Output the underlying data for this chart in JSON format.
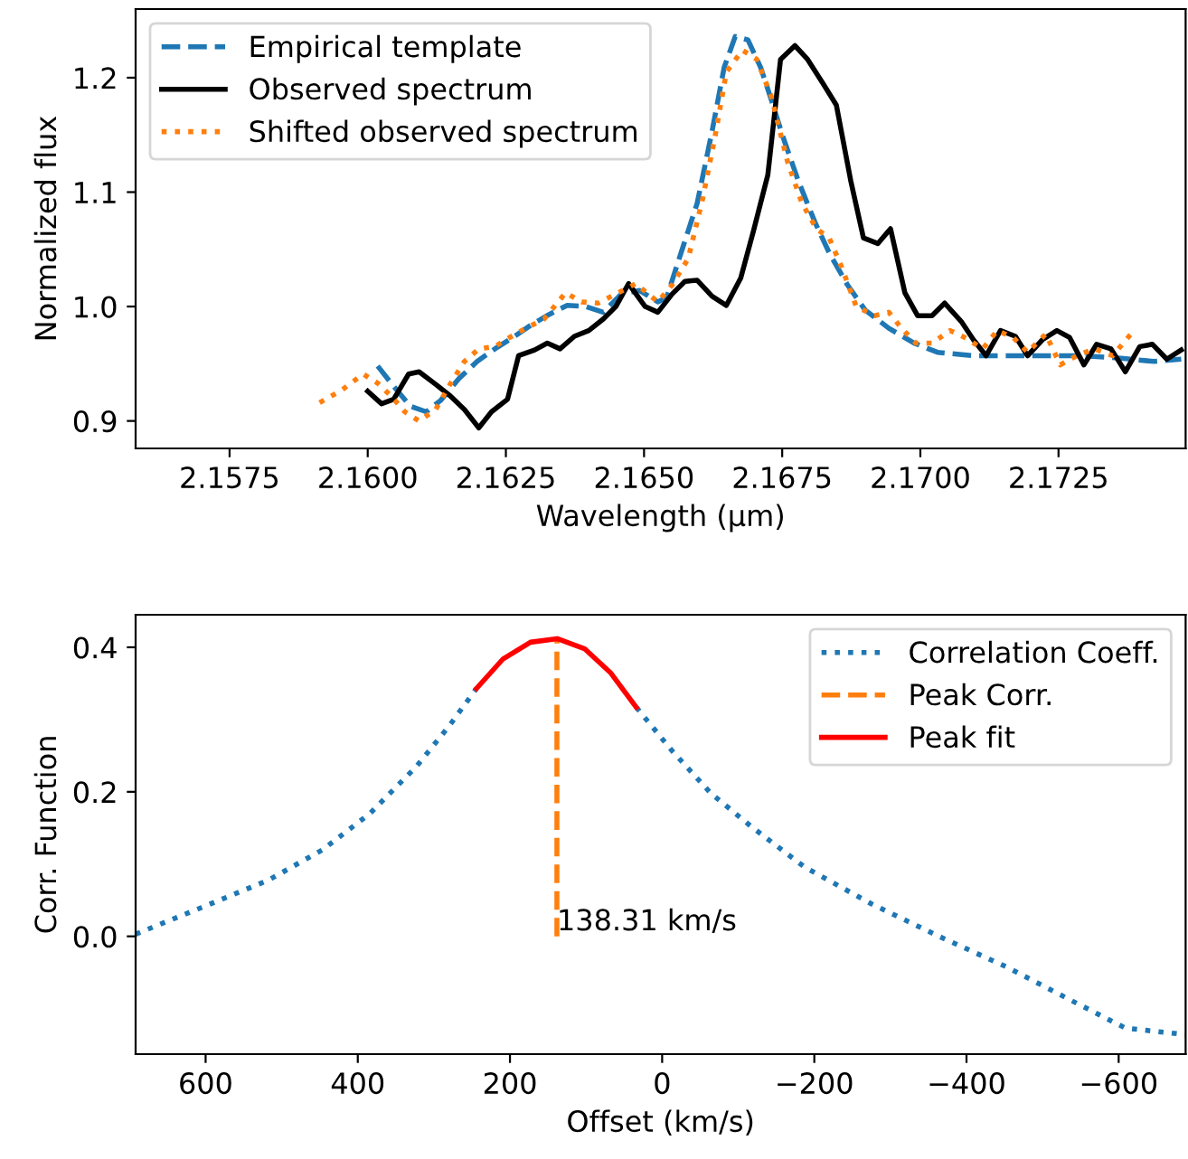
{
  "chart_data": [
    {
      "type": "line",
      "xlabel": "Wavelength (μm)",
      "ylabel": "Normalized flux",
      "xlim": [
        2.1558,
        2.1748
      ],
      "ylim": [
        0.876,
        1.26
      ],
      "xticks": [
        2.1575,
        {
          "value": 2.16,
          "label": "2.1600"
        },
        2.1625,
        {
          "value": 2.165,
          "label": "2.1650"
        },
        2.1675,
        {
          "value": 2.17,
          "label": "2.1700"
        },
        2.1725
      ],
      "yticks": [
        {
          "value": 0.9,
          "label": "0.9"
        },
        {
          "value": 1.0,
          "label": "1.0"
        },
        {
          "value": 1.1,
          "label": "1.1"
        },
        {
          "value": 1.2,
          "label": "1.2"
        }
      ],
      "legend": "top left",
      "grid": false,
      "series": [
        {
          "name": "Empirical template",
          "color": "#1f77b4",
          "line_style": "dashed",
          "x": [
            2.16018,
            2.16044,
            2.16077,
            2.16106,
            2.16132,
            2.16165,
            2.16198,
            2.1623,
            2.16263,
            2.16296,
            2.16328,
            2.16361,
            2.16394,
            2.16426,
            2.16459,
            2.16492,
            2.16525,
            2.16541,
            2.16567,
            2.16596,
            2.16623,
            2.16645,
            2.16665,
            2.16688,
            2.16711,
            2.1673,
            2.16753,
            2.16779,
            2.16809,
            2.16835,
            2.16868,
            2.169,
            2.16943,
            2.16989,
            2.17031,
            2.17096,
            2.17162,
            2.17227,
            2.17292,
            2.17358,
            2.17423,
            2.17472
          ],
          "values": [
            0.948,
            0.932,
            0.913,
            0.908,
            0.918,
            0.937,
            0.952,
            0.963,
            0.973,
            0.984,
            0.993,
            1.001,
            1.0,
            0.995,
            1.011,
            1.014,
            1.004,
            1.008,
            1.047,
            1.09,
            1.153,
            1.209,
            1.236,
            1.233,
            1.209,
            1.181,
            1.146,
            1.11,
            1.074,
            1.047,
            1.019,
            0.997,
            0.981,
            0.968,
            0.96,
            0.957,
            0.957,
            0.957,
            0.957,
            0.955,
            0.952,
            0.954
          ]
        },
        {
          "name": "Observed spectrum",
          "color": "#000000",
          "line_style": "solid",
          "x": [
            2.16,
            2.16025,
            2.16047,
            2.16074,
            2.16093,
            2.16123,
            2.16149,
            2.16175,
            2.16201,
            2.16224,
            2.16253,
            2.16273,
            2.16302,
            2.16325,
            2.16348,
            2.16374,
            2.164,
            2.16426,
            2.16449,
            2.16472,
            2.16502,
            2.16525,
            2.16551,
            2.16574,
            2.16596,
            2.16623,
            2.16649,
            2.16675,
            2.16698,
            2.16724,
            2.16747,
            2.16773,
            2.16796,
            2.16825,
            2.16848,
            2.16874,
            2.16897,
            2.16923,
            2.16946,
            2.16972,
            2.16995,
            2.17021,
            2.17044,
            2.17074,
            2.17096,
            2.17119,
            2.17145,
            2.17172,
            2.17194,
            2.17221,
            2.17247,
            2.1727,
            2.17296,
            2.17319,
            2.17345,
            2.17371,
            2.17397,
            2.1742,
            2.17446,
            2.17472
          ],
          "values": [
            0.926,
            0.915,
            0.919,
            0.941,
            0.943,
            0.932,
            0.922,
            0.91,
            0.894,
            0.908,
            0.919,
            0.957,
            0.962,
            0.968,
            0.963,
            0.974,
            0.979,
            0.989,
            1.0,
            1.02,
            1.0,
            0.995,
            1.011,
            1.022,
            1.023,
            1.009,
            1.001,
            1.025,
            1.066,
            1.115,
            1.216,
            1.228,
            1.216,
            1.194,
            1.176,
            1.11,
            1.06,
            1.055,
            1.068,
            1.012,
            0.992,
            0.992,
            1.003,
            0.987,
            0.971,
            0.957,
            0.979,
            0.974,
            0.957,
            0.971,
            0.979,
            0.973,
            0.949,
            0.967,
            0.963,
            0.943,
            0.965,
            0.967,
            0.954,
            0.962
          ]
        },
        {
          "name": "Shifted observed spectrum",
          "color": "#ff7f0e",
          "line_style": "dotted",
          "x": [
            2.15913,
            2.15953,
            2.15992,
            2.16018,
            2.16044,
            2.16067,
            2.16093,
            2.16123,
            2.16149,
            2.16175,
            2.16201,
            2.1623,
            2.16257,
            2.16286,
            2.16319,
            2.16358,
            2.16387,
            2.16417,
            2.16449,
            2.16485,
            2.16525,
            2.16551,
            2.1658,
            2.16606,
            2.16629,
            2.16649,
            2.16678,
            2.16704,
            2.1673,
            2.1676,
            2.16786,
            2.16812,
            2.16835,
            2.16858,
            2.16884,
            2.16917,
            2.16943,
            2.16966,
            2.16992,
            2.17021,
            2.17054,
            2.1708,
            2.17113,
            2.17139,
            2.17168,
            2.17194,
            2.17227,
            2.17253,
            2.17283,
            2.17315,
            2.17348,
            2.17381
          ],
          "values": [
            0.916,
            0.927,
            0.941,
            0.933,
            0.921,
            0.908,
            0.9,
            0.91,
            0.932,
            0.952,
            0.963,
            0.965,
            0.973,
            0.981,
            0.989,
            1.012,
            1.004,
            1.003,
            1.011,
            1.02,
            1.004,
            1.019,
            1.042,
            1.094,
            1.15,
            1.205,
            1.224,
            1.216,
            1.184,
            1.126,
            1.09,
            1.068,
            1.06,
            1.034,
            1.0,
            0.992,
            0.995,
            0.981,
            0.968,
            0.968,
            0.979,
            0.973,
            0.963,
            0.979,
            0.973,
            0.96,
            0.976,
            0.949,
            0.957,
            0.963,
            0.957,
            0.976
          ]
        }
      ]
    },
    {
      "type": "line",
      "xlabel": "Offset (km/s)",
      "ylabel": "Corr. Function",
      "xlim": [
        692,
        -688
      ],
      "ylim": [
        -0.163,
        0.445
      ],
      "xticks": [
        600,
        400,
        200,
        0,
        {
          "value": -200,
          "label": "−200"
        },
        {
          "value": -400,
          "label": "−400"
        },
        {
          "value": -600,
          "label": "−600"
        }
      ],
      "yticks": [
        {
          "value": 0.0,
          "label": "0.0"
        },
        {
          "value": 0.2,
          "label": "0.2"
        },
        {
          "value": 0.4,
          "label": "0.4"
        }
      ],
      "legend": "top right",
      "grid": false,
      "annotations": [
        {
          "text": "138.31 km/s",
          "x": 138.31,
          "y": 0
        }
      ],
      "series": [
        {
          "name": "Correlation Coeff.",
          "color": "#1f77b4",
          "line_style": "dotted",
          "x": [
            692,
            605,
            517,
            446,
            384,
            323,
            280,
            244,
            209,
            173,
            138,
            102,
            68,
            34,
            -12,
            -64,
            -117,
            -187,
            -275,
            -364,
            -452,
            -540,
            -609,
            -688
          ],
          "values": [
            0.003,
            0.04,
            0.078,
            0.12,
            0.17,
            0.235,
            0.291,
            0.343,
            null,
            null,
            null,
            null,
            null,
            0.317,
            0.258,
            0.198,
            0.152,
            0.096,
            0.045,
            0.0,
            -0.042,
            -0.09,
            -0.127,
            -0.136
          ]
        },
        {
          "name": "Peak Corr.",
          "color": "#ff7f0e",
          "line_style": "dashed",
          "x": [
            138.31,
            138.31
          ],
          "values": [
            0,
            0.412
          ]
        },
        {
          "name": "Peak fit",
          "color": "#ff0000",
          "line_style": "solid",
          "x": [
            244,
            209,
            173,
            138,
            102,
            68,
            34
          ],
          "values": [
            0.343,
            0.384,
            0.407,
            0.412,
            0.398,
            0.365,
            0.317
          ]
        }
      ]
    }
  ]
}
